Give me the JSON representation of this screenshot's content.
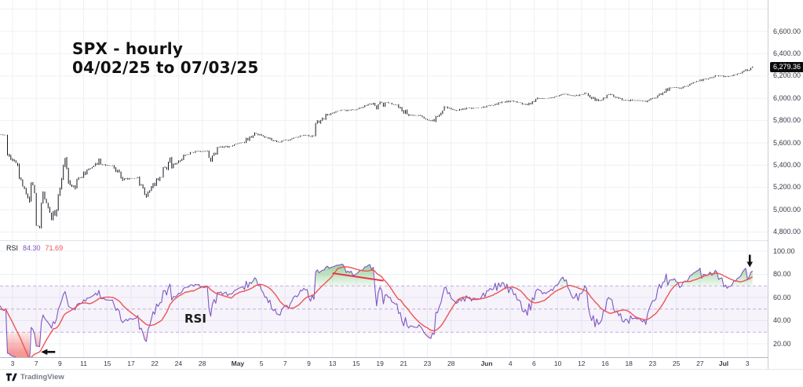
{
  "header": {
    "title_line1": "SPX - hourly",
    "title_line2": "04/02/25 to 07/03/25"
  },
  "price_panel": {
    "last_price": "6,279.36",
    "axis_ticks": [
      {
        "label": "6,600.00",
        "value": 6600
      },
      {
        "label": "6,400.00",
        "value": 6400
      },
      {
        "label": "6,200.00",
        "value": 6200
      },
      {
        "label": "6,000.00",
        "value": 6000
      },
      {
        "label": "5,800.00",
        "value": 5800
      },
      {
        "label": "5,600.00",
        "value": 5600
      },
      {
        "label": "5,400.00",
        "value": 5400
      },
      {
        "label": "5,200.00",
        "value": 5200
      },
      {
        "label": "5,000.00",
        "value": 5000
      },
      {
        "label": "4,800.00",
        "value": 4800
      }
    ]
  },
  "rsi_panel": {
    "legend_label": "RSI",
    "legend_rsi_value": "84.30",
    "legend_ma_value": "71.69",
    "panel_label": "RSI",
    "axis_ticks": [
      {
        "label": "100.00",
        "value": 100
      },
      {
        "label": "80.00",
        "value": 80
      },
      {
        "label": "60.00",
        "value": 60
      },
      {
        "label": "40.00",
        "value": 40
      },
      {
        "label": "20.00",
        "value": 20
      }
    ],
    "band": {
      "upper": 70,
      "middle": 50,
      "lower": 30
    }
  },
  "time_axis": {
    "ticks": [
      {
        "label": "3",
        "day_index": 1
      },
      {
        "label": "7",
        "day_index": 3
      },
      {
        "label": "9",
        "day_index": 5
      },
      {
        "label": "11",
        "day_index": 7
      },
      {
        "label": "15",
        "day_index": 9
      },
      {
        "label": "17",
        "day_index": 11
      },
      {
        "label": "22",
        "day_index": 13
      },
      {
        "label": "24",
        "day_index": 15
      },
      {
        "label": "28",
        "day_index": 17
      },
      {
        "label": "May",
        "day_index": 20,
        "bold": true
      },
      {
        "label": "5",
        "day_index": 22
      },
      {
        "label": "7",
        "day_index": 24
      },
      {
        "label": "9",
        "day_index": 26
      },
      {
        "label": "13",
        "day_index": 28
      },
      {
        "label": "15",
        "day_index": 30
      },
      {
        "label": "19",
        "day_index": 32
      },
      {
        "label": "21",
        "day_index": 34
      },
      {
        "label": "23",
        "day_index": 36
      },
      {
        "label": "28",
        "day_index": 38
      },
      {
        "label": "Jun",
        "day_index": 41,
        "bold": true
      },
      {
        "label": "4",
        "day_index": 43
      },
      {
        "label": "6",
        "day_index": 45
      },
      {
        "label": "10",
        "day_index": 47
      },
      {
        "label": "12",
        "day_index": 49
      },
      {
        "label": "16",
        "day_index": 51
      },
      {
        "label": "18",
        "day_index": 53
      },
      {
        "label": "23",
        "day_index": 55
      },
      {
        "label": "25",
        "day_index": 57
      },
      {
        "label": "27",
        "day_index": 59
      },
      {
        "label": "Jul",
        "day_index": 61,
        "bold": true
      },
      {
        "label": "3",
        "day_index": 63
      }
    ]
  },
  "footer": {
    "brand": "TradingView"
  },
  "chart_data": {
    "type": "candlestick",
    "symbol": "SPX",
    "timeframe": "hourly",
    "range": "04/02/25 to 07/03/25",
    "title": "SPX - hourly 04/02/25 to 07/03/25",
    "price_ylim": [
      4760,
      6880
    ],
    "last_price": 6279.36,
    "daily": [
      {
        "date": "04/02",
        "close": 5671
      },
      {
        "date": "04/03",
        "close": 5396,
        "high": 5499,
        "low": 5388
      },
      {
        "date": "04/04",
        "close": 5074,
        "high": 5289,
        "low": 5069
      },
      {
        "date": "04/07",
        "close": 5062,
        "high": 5246,
        "low": 4835
      },
      {
        "date": "04/08",
        "close": 4983,
        "high": 5160,
        "low": 4910
      },
      {
        "date": "04/09",
        "close": 5457,
        "high": 5460,
        "low": 4948
      },
      {
        "date": "04/10",
        "close": 5268,
        "high": 5370,
        "low": 5115
      },
      {
        "date": "04/11",
        "close": 5363
      },
      {
        "date": "04/14",
        "close": 5406,
        "high": 5459
      },
      {
        "date": "04/15",
        "close": 5397
      },
      {
        "date": "04/16",
        "close": 5276,
        "low": 5220
      },
      {
        "date": "04/17",
        "close": 5283
      },
      {
        "date": "04/21",
        "close": 5158,
        "low": 5101
      },
      {
        "date": "04/22",
        "close": 5288
      },
      {
        "date": "04/23",
        "close": 5376,
        "high": 5469
      },
      {
        "date": "04/24",
        "close": 5485
      },
      {
        "date": "04/25",
        "close": 5525
      },
      {
        "date": "04/28",
        "close": 5529
      },
      {
        "date": "04/29",
        "close": 5561,
        "low": 5433
      },
      {
        "date": "04/30",
        "close": 5569
      },
      {
        "date": "05/01",
        "close": 5604
      },
      {
        "date": "05/02",
        "close": 5687
      },
      {
        "date": "05/05",
        "close": 5650
      },
      {
        "date": "05/06",
        "close": 5607
      },
      {
        "date": "05/07",
        "close": 5631
      },
      {
        "date": "05/08",
        "close": 5663
      },
      {
        "date": "05/09",
        "close": 5660
      },
      {
        "date": "05/12",
        "close": 5844,
        "low": 5773
      },
      {
        "date": "05/13",
        "close": 5887
      },
      {
        "date": "05/14",
        "close": 5893
      },
      {
        "date": "05/15",
        "close": 5916
      },
      {
        "date": "05/16",
        "close": 5958
      },
      {
        "date": "05/19",
        "close": 5963,
        "low": 5902
      },
      {
        "date": "05/20",
        "close": 5940
      },
      {
        "date": "05/21",
        "close": 5845
      },
      {
        "date": "05/22",
        "close": 5842
      },
      {
        "date": "05/23",
        "close": 5803,
        "low": 5767
      },
      {
        "date": "05/27",
        "close": 5922
      },
      {
        "date": "05/28",
        "close": 5889
      },
      {
        "date": "05/29",
        "close": 5912
      },
      {
        "date": "05/30",
        "close": 5912
      },
      {
        "date": "06/02",
        "close": 5936
      },
      {
        "date": "06/03",
        "close": 5970
      },
      {
        "date": "06/04",
        "close": 5971
      },
      {
        "date": "06/05",
        "close": 5939
      },
      {
        "date": "06/06",
        "close": 6000
      },
      {
        "date": "06/09",
        "close": 6006
      },
      {
        "date": "06/10",
        "close": 6039
      },
      {
        "date": "06/11",
        "close": 6022
      },
      {
        "date": "06/12",
        "close": 6045
      },
      {
        "date": "06/13",
        "close": 5977,
        "low": 5963
      },
      {
        "date": "06/16",
        "close": 6033
      },
      {
        "date": "06/17",
        "close": 5983
      },
      {
        "date": "06/18",
        "close": 5981
      },
      {
        "date": "06/20",
        "close": 5968
      },
      {
        "date": "06/23",
        "close": 6025
      },
      {
        "date": "06/24",
        "close": 6092
      },
      {
        "date": "06/25",
        "close": 6092
      },
      {
        "date": "06/26",
        "close": 6141
      },
      {
        "date": "06/27",
        "close": 6173
      },
      {
        "date": "06/30",
        "close": 6205
      },
      {
        "date": "07/01",
        "close": 6198
      },
      {
        "date": "07/02",
        "close": 6227
      },
      {
        "date": "07/03",
        "close": 6279.36
      }
    ],
    "indicators": [
      {
        "type": "rsi",
        "period": 14,
        "ma_period": 14,
        "current": 84.3,
        "ma_current": 71.69,
        "overbought": 70,
        "oversold": 30,
        "midline": 50,
        "ylim": [
          8,
          105
        ]
      }
    ],
    "annotations": [
      {
        "type": "arrow-left",
        "meaning": "points at oversold RSI low",
        "day_index": 4,
        "rsi": 13
      },
      {
        "type": "arrow-down",
        "meaning": "points at final overbought RSI spike",
        "day_index": 63.2,
        "rsi": 91.5
      },
      {
        "type": "trendline",
        "meaning": "declining RSI peaks",
        "from": {
          "day_index": 28,
          "rsi": 81
        },
        "to": {
          "day_index": 32.3,
          "rsi": 74.5
        }
      }
    ],
    "colors": {
      "bars": "#16181d",
      "rsi_line": "#7E57C2",
      "rsi_ma_line": "#EF5350",
      "band_fill": "rgba(126,87,194,0.07)",
      "band_dashed_line": "rgba(126,87,194,0.45)",
      "overbought_fill": "#4CAF50",
      "oversold_fill": "#EF5350",
      "trendline": "#e53947",
      "annotation": "#111111",
      "grid": "#edf0f4",
      "axis_text": "#363a45",
      "badge_bg": "#0a0a0a",
      "badge_text": "#ffffff"
    }
  }
}
